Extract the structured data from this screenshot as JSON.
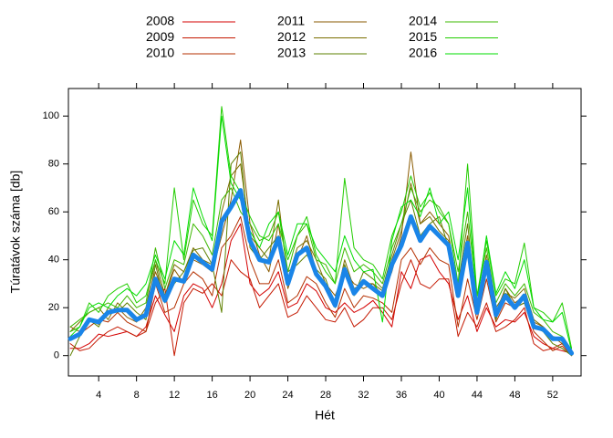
{
  "chart_data": {
    "type": "line",
    "x_label": "Hét",
    "y_label": "Túratávok száma [db]",
    "x": [
      1,
      2,
      3,
      4,
      5,
      6,
      7,
      8,
      9,
      10,
      11,
      12,
      13,
      14,
      15,
      16,
      17,
      18,
      19,
      20,
      21,
      22,
      23,
      24,
      25,
      26,
      27,
      28,
      29,
      30,
      31,
      32,
      33,
      34,
      35,
      36,
      37,
      38,
      39,
      40,
      41,
      42,
      43,
      44,
      45,
      46,
      47,
      48,
      49,
      50,
      51,
      52,
      53,
      54
    ],
    "xlim": [
      0.8,
      55
    ],
    "xticks": [
      4,
      8,
      12,
      16,
      20,
      24,
      28,
      32,
      36,
      40,
      44,
      48,
      52
    ],
    "ylim": [
      -8.5,
      111.5
    ],
    "yticks": [
      0,
      20,
      40,
      60,
      80,
      100
    ],
    "series": [
      {
        "name": "2008",
        "color": "#d40000",
        "values": [
          3,
          3,
          5,
          9,
          8,
          9,
          10,
          8,
          12,
          25,
          17,
          10,
          25,
          30,
          28,
          20,
          30,
          48,
          55,
          30,
          25,
          28,
          35,
          20,
          22,
          30,
          27,
          20,
          18,
          22,
          18,
          20,
          23,
          18,
          12,
          35,
          28,
          40,
          42,
          35,
          30,
          15,
          25,
          10,
          20,
          12,
          15,
          14,
          18,
          8,
          5,
          3,
          2,
          1
        ]
      },
      {
        "name": "2009",
        "color": "#c41800",
        "values": [
          5,
          2,
          3,
          7,
          10,
          12,
          10,
          8,
          10,
          22,
          28,
          0,
          22,
          28,
          26,
          30,
          25,
          40,
          35,
          32,
          20,
          25,
          30,
          16,
          18,
          25,
          20,
          15,
          14,
          20,
          12,
          15,
          20,
          20,
          15,
          30,
          40,
          30,
          28,
          32,
          32,
          8,
          18,
          12,
          22,
          10,
          12,
          15,
          20,
          5,
          2,
          3,
          5,
          0
        ]
      },
      {
        "name": "2010",
        "color": "#b43000",
        "values": [
          8,
          9,
          12,
          15,
          14,
          18,
          14,
          12,
          10,
          30,
          18,
          20,
          30,
          35,
          32,
          25,
          45,
          50,
          58,
          40,
          30,
          30,
          40,
          22,
          25,
          33,
          30,
          22,
          16,
          28,
          20,
          25,
          24,
          22,
          18,
          40,
          45,
          38,
          45,
          40,
          38,
          12,
          32,
          15,
          32,
          14,
          22,
          20,
          22,
          10,
          6,
          2,
          4,
          0
        ]
      },
      {
        "name": "2011",
        "color": "#8a5a00",
        "values": [
          12,
          10,
          15,
          13,
          18,
          20,
          16,
          14,
          18,
          35,
          25,
          36,
          30,
          40,
          38,
          35,
          50,
          65,
          90,
          55,
          42,
          35,
          55,
          28,
          40,
          50,
          35,
          30,
          25,
          35,
          30,
          28,
          30,
          25,
          35,
          50,
          85,
          55,
          60,
          55,
          50,
          28,
          50,
          20,
          40,
          18,
          28,
          22,
          25,
          14,
          12,
          8,
          5,
          1
        ]
      },
      {
        "name": "2012",
        "color": "#7a6e00",
        "values": [
          10,
          14,
          18,
          20,
          15,
          22,
          18,
          14,
          20,
          40,
          25,
          38,
          35,
          45,
          40,
          38,
          60,
          75,
          80,
          50,
          45,
          40,
          65,
          32,
          45,
          48,
          40,
          30,
          22,
          40,
          28,
          30,
          30,
          27,
          40,
          52,
          72,
          55,
          58,
          52,
          48,
          25,
          48,
          22,
          42,
          20,
          26,
          24,
          28,
          15,
          12,
          8,
          7,
          2
        ]
      },
      {
        "name": "2013",
        "color": "#5e8000",
        "values": [
          0,
          8,
          15,
          12,
          20,
          18,
          22,
          18,
          15,
          38,
          22,
          30,
          35,
          44,
          45,
          38,
          18,
          80,
          85,
          45,
          40,
          45,
          50,
          35,
          38,
          42,
          36,
          32,
          20,
          38,
          25,
          35,
          32,
          28,
          42,
          55,
          65,
          50,
          55,
          58,
          45,
          30,
          55,
          18,
          38,
          15,
          28,
          20,
          22,
          12,
          10,
          5,
          3,
          0
        ]
      },
      {
        "name": "2014",
        "color": "#3cb800",
        "values": [
          12,
          15,
          18,
          20,
          22,
          20,
          25,
          20,
          22,
          45,
          28,
          40,
          38,
          55,
          50,
          42,
          65,
          70,
          60,
          55,
          48,
          50,
          60,
          35,
          50,
          55,
          40,
          38,
          30,
          45,
          35,
          38,
          35,
          30,
          45,
          55,
          70,
          60,
          65,
          62,
          55,
          35,
          60,
          25,
          45,
          22,
          30,
          25,
          30,
          18,
          15,
          10,
          8,
          2
        ]
      },
      {
        "name": "2015",
        "color": "#22cc00",
        "values": [
          10,
          12,
          22,
          18,
          25,
          28,
          30,
          22,
          25,
          40,
          30,
          70,
          40,
          65,
          55,
          50,
          104,
          75,
          68,
          58,
          50,
          48,
          55,
          40,
          50,
          58,
          42,
          35,
          30,
          74,
          45,
          40,
          38,
          32,
          50,
          60,
          75,
          62,
          68,
          60,
          55,
          30,
          80,
          25,
          48,
          25,
          32,
          30,
          47,
          20,
          18,
          14,
          22,
          3
        ]
      },
      {
        "name": "2016",
        "color": "#00dd00",
        "values": [
          8,
          12,
          20,
          22,
          20,
          25,
          28,
          25,
          30,
          42,
          32,
          48,
          42,
          70,
          58,
          48,
          100,
          72,
          65,
          52,
          45,
          55,
          60,
          42,
          55,
          55,
          45,
          40,
          35,
          50,
          40,
          35,
          36,
          14,
          48,
          62,
          65,
          58,
          70,
          55,
          60,
          40,
          70,
          22,
          50,
          26,
          35,
          28,
          40,
          20,
          15,
          14,
          18,
          2
        ]
      },
      {
        "color": "#1a85e8",
        "values": [
          7,
          9,
          15,
          14,
          18,
          19,
          19,
          15,
          17,
          32,
          23,
          32,
          31,
          42,
          39,
          36,
          56,
          62,
          69,
          48,
          40,
          39,
          49,
          30,
          42,
          45,
          34,
          29,
          21,
          36,
          26,
          31,
          28,
          25,
          38,
          46,
          58,
          48,
          54,
          50,
          46,
          25,
          47,
          18,
          39,
          17,
          25,
          20,
          25,
          12,
          11,
          7,
          7,
          1
        ]
      }
    ]
  }
}
